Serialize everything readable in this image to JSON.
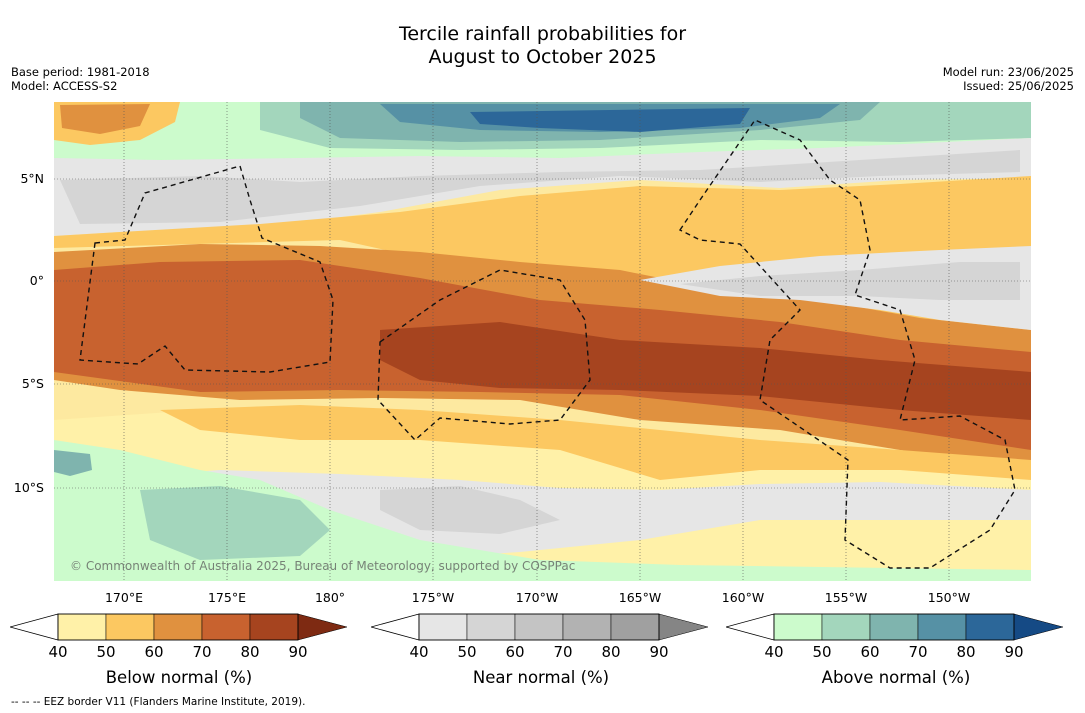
{
  "title_line1": "Tercile rainfall probabilities for",
  "title_line2": "August to October 2025",
  "base_period": "Base period: 1981-2018",
  "model": "Model: ACCESS-S2",
  "model_run": "Model run: 23/06/2025",
  "issued": "Issued: 25/06/2025",
  "lat_labels": [
    "5°N",
    "0°",
    "5°S",
    "10°S"
  ],
  "lon_labels": [
    "170°E",
    "175°E",
    "180°",
    "175°W",
    "170°W",
    "165°W",
    "160°W",
    "155°W",
    "150°W"
  ],
  "copyright": "© Commonwealth of Australia 2025, Bureau of Meteorology, supported by COSPPac",
  "colorbars": [
    {
      "title": "Below normal (%)",
      "ticks": [
        "40",
        "50",
        "60",
        "70",
        "80",
        "90"
      ],
      "colors": [
        "#fff1a8",
        "#fcc861",
        "#e0913f",
        "#c8622f",
        "#a6441f",
        "#7e2a12"
      ]
    },
    {
      "title": "Near normal (%)",
      "ticks": [
        "40",
        "50",
        "60",
        "70",
        "80",
        "90"
      ],
      "colors": [
        "#e6e6e6",
        "#d5d5d5",
        "#c4c4c4",
        "#b2b2b2",
        "#a0a0a0",
        "#858585"
      ]
    },
    {
      "title": "Above normal (%)",
      "ticks": [
        "40",
        "50",
        "60",
        "70",
        "80",
        "90"
      ],
      "colors": [
        "#ccfbcc",
        "#a3d6bc",
        "#7fb4ae",
        "#5691a5",
        "#2c6799",
        "#154a85"
      ]
    }
  ],
  "footer": "-- -- -- EEZ border V11 (Flanders Marine Institute, 2019)."
}
